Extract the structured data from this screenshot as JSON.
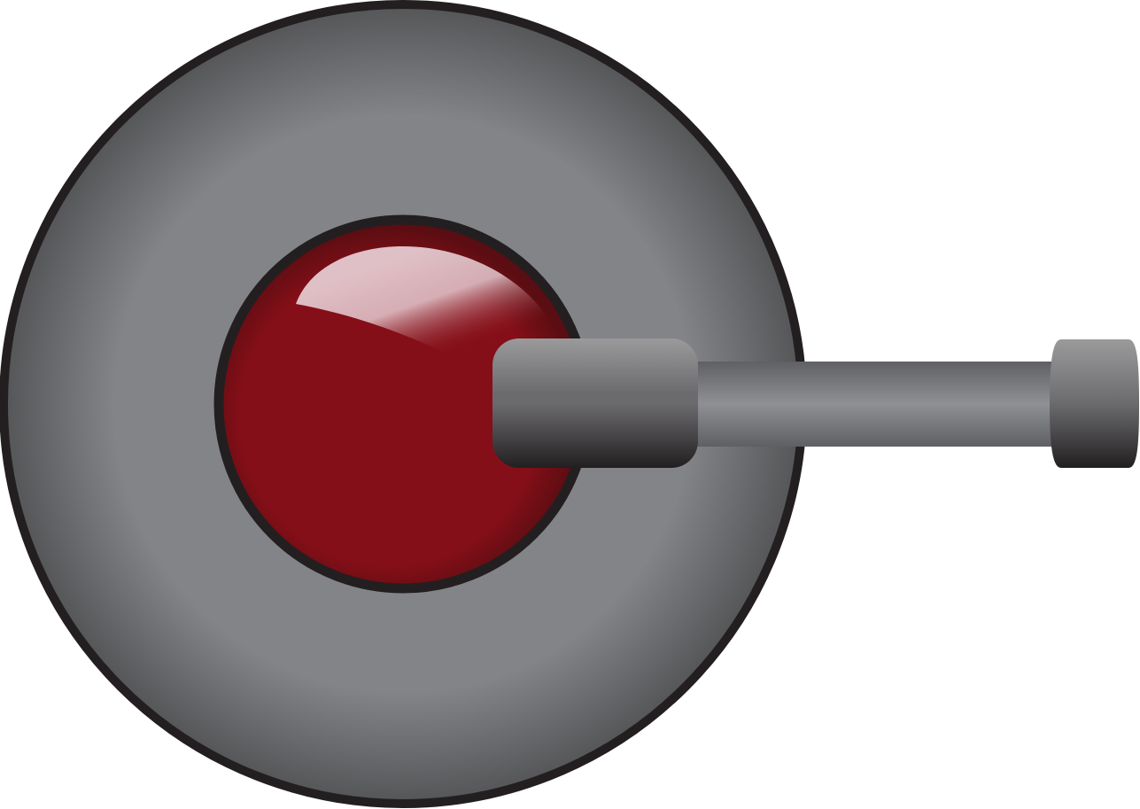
{
  "colors": {
    "background": "#ffffff",
    "outline": "#231f20",
    "disc_light": "#838488",
    "disc_dark": "#545557",
    "button_red": "#850f18",
    "button_red_dark": "#5a0d12",
    "highlight": "#e4c9cf",
    "metal_light": "#9b9a9b",
    "metal_mid": "#6b6b6e",
    "metal_dark": "#231f20",
    "rod_light": "#8f9094",
    "rod_dark": "#5f6063"
  },
  "icons": {
    "device": "rotary-knob-with-red-button-icon",
    "base_disc": "gray-disc-icon",
    "button": "red-button-icon",
    "lever": "lever-arm-icon"
  }
}
